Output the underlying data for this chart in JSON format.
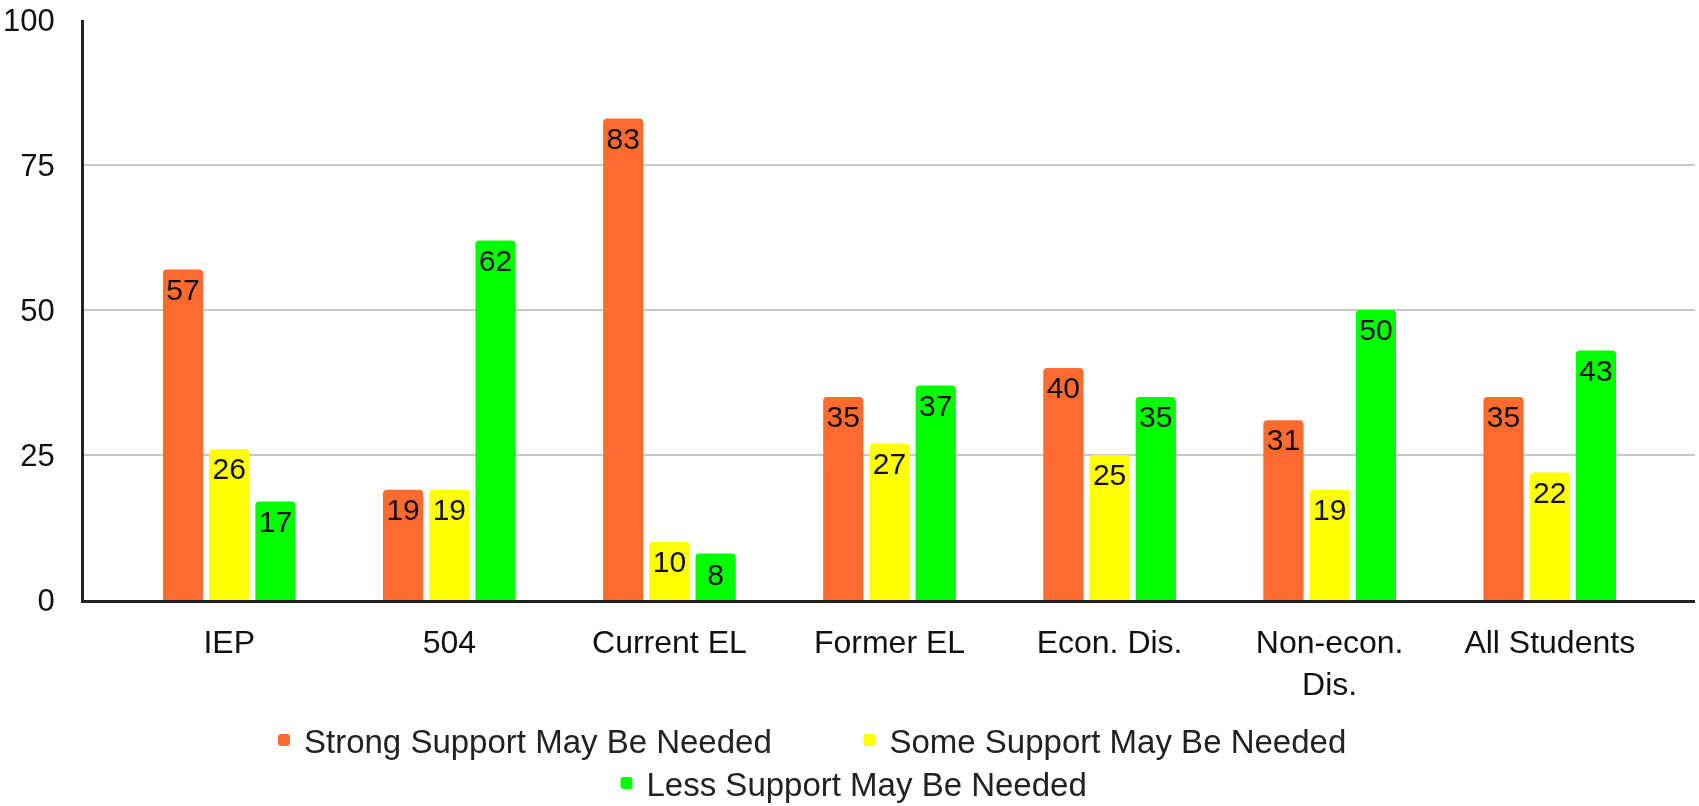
{
  "chart_data": {
    "type": "bar",
    "categories": [
      "IEP",
      "504",
      "Current EL",
      "Former EL",
      "Econ. Dis.",
      "Non-econ. Dis.",
      "All Students"
    ],
    "series": [
      {
        "name": "Strong Support May Be Needed",
        "color": "#ff6a2e",
        "values": [
          57,
          19,
          83,
          35,
          40,
          31,
          35
        ]
      },
      {
        "name": "Some Support May Be Needed",
        "color": "#ffff00",
        "values": [
          26,
          19,
          10,
          27,
          25,
          19,
          22
        ]
      },
      {
        "name": "Less Support May Be Needed",
        "color": "#00ff00",
        "values": [
          17,
          62,
          8,
          37,
          35,
          50,
          43
        ]
      }
    ],
    "ylim": [
      0,
      100
    ],
    "yticks": [
      0,
      25,
      50,
      75,
      100
    ],
    "grid": "y",
    "legend": "bottom",
    "data_labels": true
  }
}
